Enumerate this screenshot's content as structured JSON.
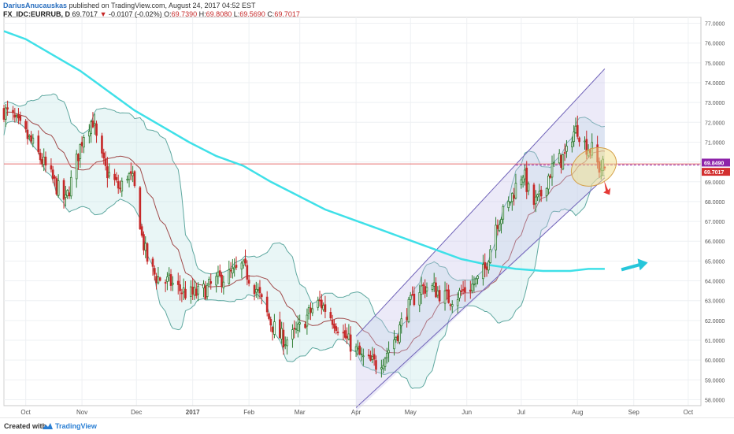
{
  "header": {
    "author": "DariusAnucauskas",
    "published": "published on TradingView.com, August 24, 2017 04:52 EST",
    "symbol": "FX_IDC:EURRUB, D",
    "last": "69.7017",
    "change_arrow": "▼",
    "change": "-0.0107 (-0.02%)",
    "o_label": "O:",
    "o_value": "69.7390",
    "h_label": "H:",
    "h_value": "69.8080",
    "l_label": "L:",
    "l_value": "69.5690",
    "c_label": "C:",
    "c_value": "69.7017"
  },
  "footer": {
    "created": "Created with",
    "brand": "TradingView"
  },
  "chart_data": {
    "type": "candlestick",
    "y_ticks": [
      "58.0000",
      "59.0000",
      "60.0000",
      "61.0000",
      "62.0000",
      "63.0000",
      "64.0000",
      "65.0000",
      "66.0000",
      "67.0000",
      "68.0000",
      "69.0000",
      "70.0000",
      "71.0000",
      "72.0000",
      "73.0000",
      "74.0000",
      "75.0000",
      "76.0000",
      "77.0000"
    ],
    "ylim": [
      57.7,
      77.3
    ],
    "x_ticks": [
      {
        "label": "Oct",
        "day": 0
      },
      {
        "label": "Nov",
        "day": 31
      },
      {
        "label": "Dec",
        "day": 61
      },
      {
        "label": "2017",
        "day": 92
      },
      {
        "label": "Feb",
        "day": 123
      },
      {
        "label": "Mar",
        "day": 151
      },
      {
        "label": "Apr",
        "day": 182
      },
      {
        "label": "May",
        "day": 212
      },
      {
        "label": "Jun",
        "day": 243
      },
      {
        "label": "Jul",
        "day": 273
      },
      {
        "label": "Aug",
        "day": 304
      },
      {
        "label": "Sep",
        "day": 335
      },
      {
        "label": "Oct",
        "day": 365
      }
    ],
    "axis_right_labels": [
      {
        "text": "69.8490",
        "price": 69.849,
        "color": "#8e24aa"
      },
      {
        "text": "69.7017",
        "price": 69.7017,
        "color": "#d32f2f"
      }
    ],
    "close_path": [
      [
        -12,
        72.6
      ],
      [
        -7,
        72.2
      ],
      [
        -2,
        71.6
      ],
      [
        3,
        71.0
      ],
      [
        8,
        70.2
      ],
      [
        13,
        69.4
      ],
      [
        18,
        68.6
      ],
      [
        22,
        68.0
      ],
      [
        25,
        69.0
      ],
      [
        29,
        70.4
      ],
      [
        33,
        71.8
      ],
      [
        37,
        72.1
      ],
      [
        40,
        70.6
      ],
      [
        44,
        69.6
      ],
      [
        48,
        69.1
      ],
      [
        52,
        68.6
      ],
      [
        56,
        69.4
      ],
      [
        59,
        69.0
      ],
      [
        62,
        67.8
      ],
      [
        64,
        66.2
      ],
      [
        68,
        64.7
      ],
      [
        72,
        64.2
      ],
      [
        76,
        64.0
      ],
      [
        80,
        63.9
      ],
      [
        84,
        63.6
      ],
      [
        88,
        63.4
      ],
      [
        92,
        63.3
      ],
      [
        96,
        63.4
      ],
      [
        100,
        63.6
      ],
      [
        105,
        64.0
      ],
      [
        110,
        64.2
      ],
      [
        115,
        64.4
      ],
      [
        119,
        64.7
      ],
      [
        121,
        64.5
      ],
      [
        123,
        64.2
      ],
      [
        127,
        63.6
      ],
      [
        131,
        62.7
      ],
      [
        135,
        61.9
      ],
      [
        139,
        61.3
      ],
      [
        143,
        61.0
      ],
      [
        147,
        61.2
      ],
      [
        151,
        61.6
      ],
      [
        155,
        62.2
      ],
      [
        159,
        62.7
      ],
      [
        162,
        62.9
      ],
      [
        165,
        62.6
      ],
      [
        169,
        62.1
      ],
      [
        173,
        61.6
      ],
      [
        177,
        61.0
      ],
      [
        181,
        60.6
      ],
      [
        185,
        60.1
      ],
      [
        189,
        59.9
      ],
      [
        193,
        59.8
      ],
      [
        197,
        60.1
      ],
      [
        201,
        60.7
      ],
      [
        205,
        61.4
      ],
      [
        209,
        62.3
      ],
      [
        213,
        63.0
      ],
      [
        217,
        63.6
      ],
      [
        221,
        63.7
      ],
      [
        225,
        63.6
      ],
      [
        229,
        63.3
      ],
      [
        233,
        63.1
      ],
      [
        237,
        63.2
      ],
      [
        241,
        63.5
      ],
      [
        245,
        63.7
      ],
      [
        249,
        64.0
      ],
      [
        253,
        64.6
      ],
      [
        256,
        65.7
      ],
      [
        259,
        66.9
      ],
      [
        262,
        67.3
      ],
      [
        265,
        67.6
      ],
      [
        268,
        68.3
      ],
      [
        271,
        69.0
      ],
      [
        274,
        69.5
      ],
      [
        277,
        68.5
      ],
      [
        280,
        67.9
      ],
      [
        283,
        68.1
      ],
      [
        286,
        68.9
      ],
      [
        289,
        69.5
      ],
      [
        292,
        70.0
      ],
      [
        295,
        70.1
      ],
      [
        298,
        70.4
      ],
      [
        301,
        71.4
      ],
      [
        304,
        71.7
      ],
      [
        307,
        71.0
      ],
      [
        310,
        70.7
      ],
      [
        312,
        70.6
      ],
      [
        314,
        70.1
      ],
      [
        316,
        69.7
      ],
      [
        318,
        69.8
      ],
      [
        319,
        69.7017
      ]
    ],
    "ma200": [
      [
        -12,
        76.6
      ],
      [
        0,
        76.2
      ],
      [
        15,
        75.4
      ],
      [
        30,
        74.6
      ],
      [
        45,
        73.6
      ],
      [
        60,
        72.6
      ],
      [
        75,
        71.8
      ],
      [
        90,
        71.0
      ],
      [
        105,
        70.3
      ],
      [
        120,
        69.8
      ],
      [
        135,
        69.0
      ],
      [
        150,
        68.3
      ],
      [
        165,
        67.6
      ],
      [
        180,
        67.1
      ],
      [
        195,
        66.6
      ],
      [
        210,
        66.1
      ],
      [
        225,
        65.6
      ],
      [
        240,
        65.1
      ],
      [
        255,
        64.8
      ],
      [
        270,
        64.6
      ],
      [
        285,
        64.5
      ],
      [
        300,
        64.5
      ],
      [
        310,
        64.6
      ],
      [
        319,
        64.6
      ]
    ],
    "channel_upper": [
      [
        182,
        61.2
      ],
      [
        319,
        74.7
      ]
    ],
    "channel_lower": [
      [
        182,
        57.6
      ],
      [
        319,
        69.2
      ]
    ],
    "channel_shade_top": [
      [
        182,
        61.2
      ],
      [
        319,
        74.7
      ]
    ],
    "channel_shade_bottom": [
      [
        182,
        57.4
      ],
      [
        319,
        69.2
      ]
    ],
    "hlines": [
      {
        "price": 69.849,
        "color": "#8e24aa",
        "dashed": true,
        "from_day": 270
      },
      {
        "price": 69.9,
        "color": "#e57373",
        "dashed": false,
        "from_day": -12
      }
    ],
    "annotations": [
      {
        "type": "ellipse",
        "center_day": 313,
        "center_price": 69.75,
        "rx_days": 13,
        "ry_price": 0.9,
        "color": "#f2e08a"
      },
      {
        "type": "arrow",
        "color": "#e53935",
        "direction": "down",
        "day": 320,
        "price": 68.5
      },
      {
        "type": "arrow",
        "color": "#26c6da",
        "direction": "right",
        "day": 328,
        "price": 64.8
      }
    ],
    "grid": true
  }
}
